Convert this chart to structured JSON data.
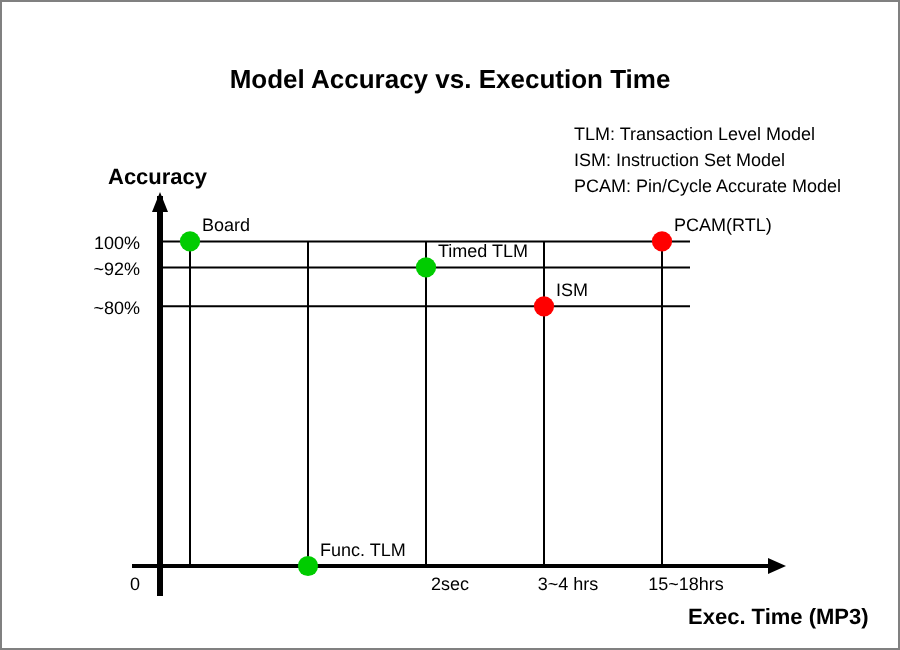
{
  "chart_data": {
    "type": "scatter",
    "title": "Model Accuracy vs. Execution Time",
    "xlabel": "Exec. Time (MP3)",
    "ylabel": "Accuracy",
    "categories": [
      null,
      null,
      "2sec",
      "3~4 hrs",
      "15~18hrs"
    ],
    "series": [
      {
        "name": "Board",
        "color": "#00cc00",
        "values": [
          100,
          null,
          null,
          null,
          null
        ]
      },
      {
        "name": "Func. TLM",
        "color": "#00cc00",
        "values": [
          null,
          0,
          null,
          null,
          null
        ]
      },
      {
        "name": "Timed TLM",
        "color": "#00cc00",
        "values": [
          null,
          null,
          92,
          null,
          null
        ]
      },
      {
        "name": "ISM",
        "color": "#ff0000",
        "values": [
          null,
          null,
          null,
          80,
          null
        ]
      },
      {
        "name": "PCAM(RTL)",
        "color": "#ff0000",
        "values": [
          null,
          null,
          null,
          null,
          100
        ]
      }
    ],
    "ylim": [
      0,
      114
    ],
    "yticks": [
      {
        "value": 0,
        "label": "0"
      },
      {
        "value": 80,
        "label": "~80%"
      },
      {
        "value": 92,
        "label": "~92%"
      },
      {
        "value": 100,
        "label": "100%"
      }
    ],
    "grid": true,
    "marker": "circle",
    "annotations": [
      "TLM: Transaction Level Model",
      "ISM: Instruction Set Model",
      "PCAM: Pin/Cycle Accurate Model"
    ]
  }
}
